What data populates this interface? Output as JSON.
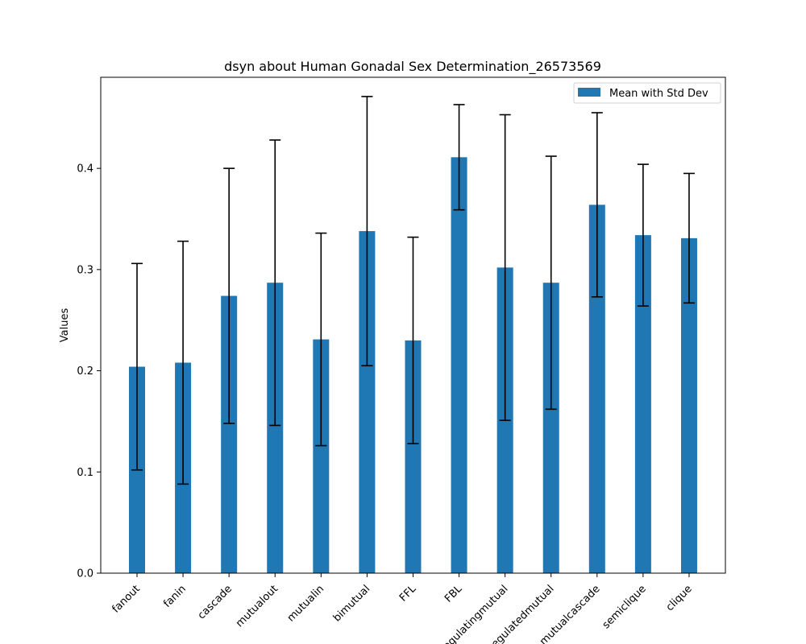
{
  "chart_data": {
    "type": "bar",
    "title": "dsyn about Human Gonadal Sex Determination_26573569",
    "xlabel": "",
    "ylabel": "Values",
    "ylim": [
      0,
      0.49
    ],
    "yticks": [
      "0.0",
      "0.1",
      "0.2",
      "0.3",
      "0.4"
    ],
    "grid": false,
    "legend": {
      "placement": "top-right",
      "label": "Mean with Std Dev"
    },
    "categories": [
      "fanout",
      "fanin",
      "cascade",
      "mutualout",
      "mutualin",
      "bimutual",
      "FFL",
      "FBL",
      "regulatingmutual",
      "regulatedmutual",
      "mutualcascade",
      "semiclique",
      "clique"
    ],
    "values": [
      0.204,
      0.208,
      0.274,
      0.287,
      0.231,
      0.338,
      0.23,
      0.411,
      0.302,
      0.287,
      0.364,
      0.334,
      0.331
    ],
    "errors": [
      0.102,
      0.12,
      0.126,
      0.141,
      0.105,
      0.133,
      0.102,
      0.052,
      0.151,
      0.125,
      0.091,
      0.07,
      0.064
    ],
    "colors": {
      "bar": "#1f77b4",
      "error": "#000000",
      "axis": "#000000"
    }
  }
}
